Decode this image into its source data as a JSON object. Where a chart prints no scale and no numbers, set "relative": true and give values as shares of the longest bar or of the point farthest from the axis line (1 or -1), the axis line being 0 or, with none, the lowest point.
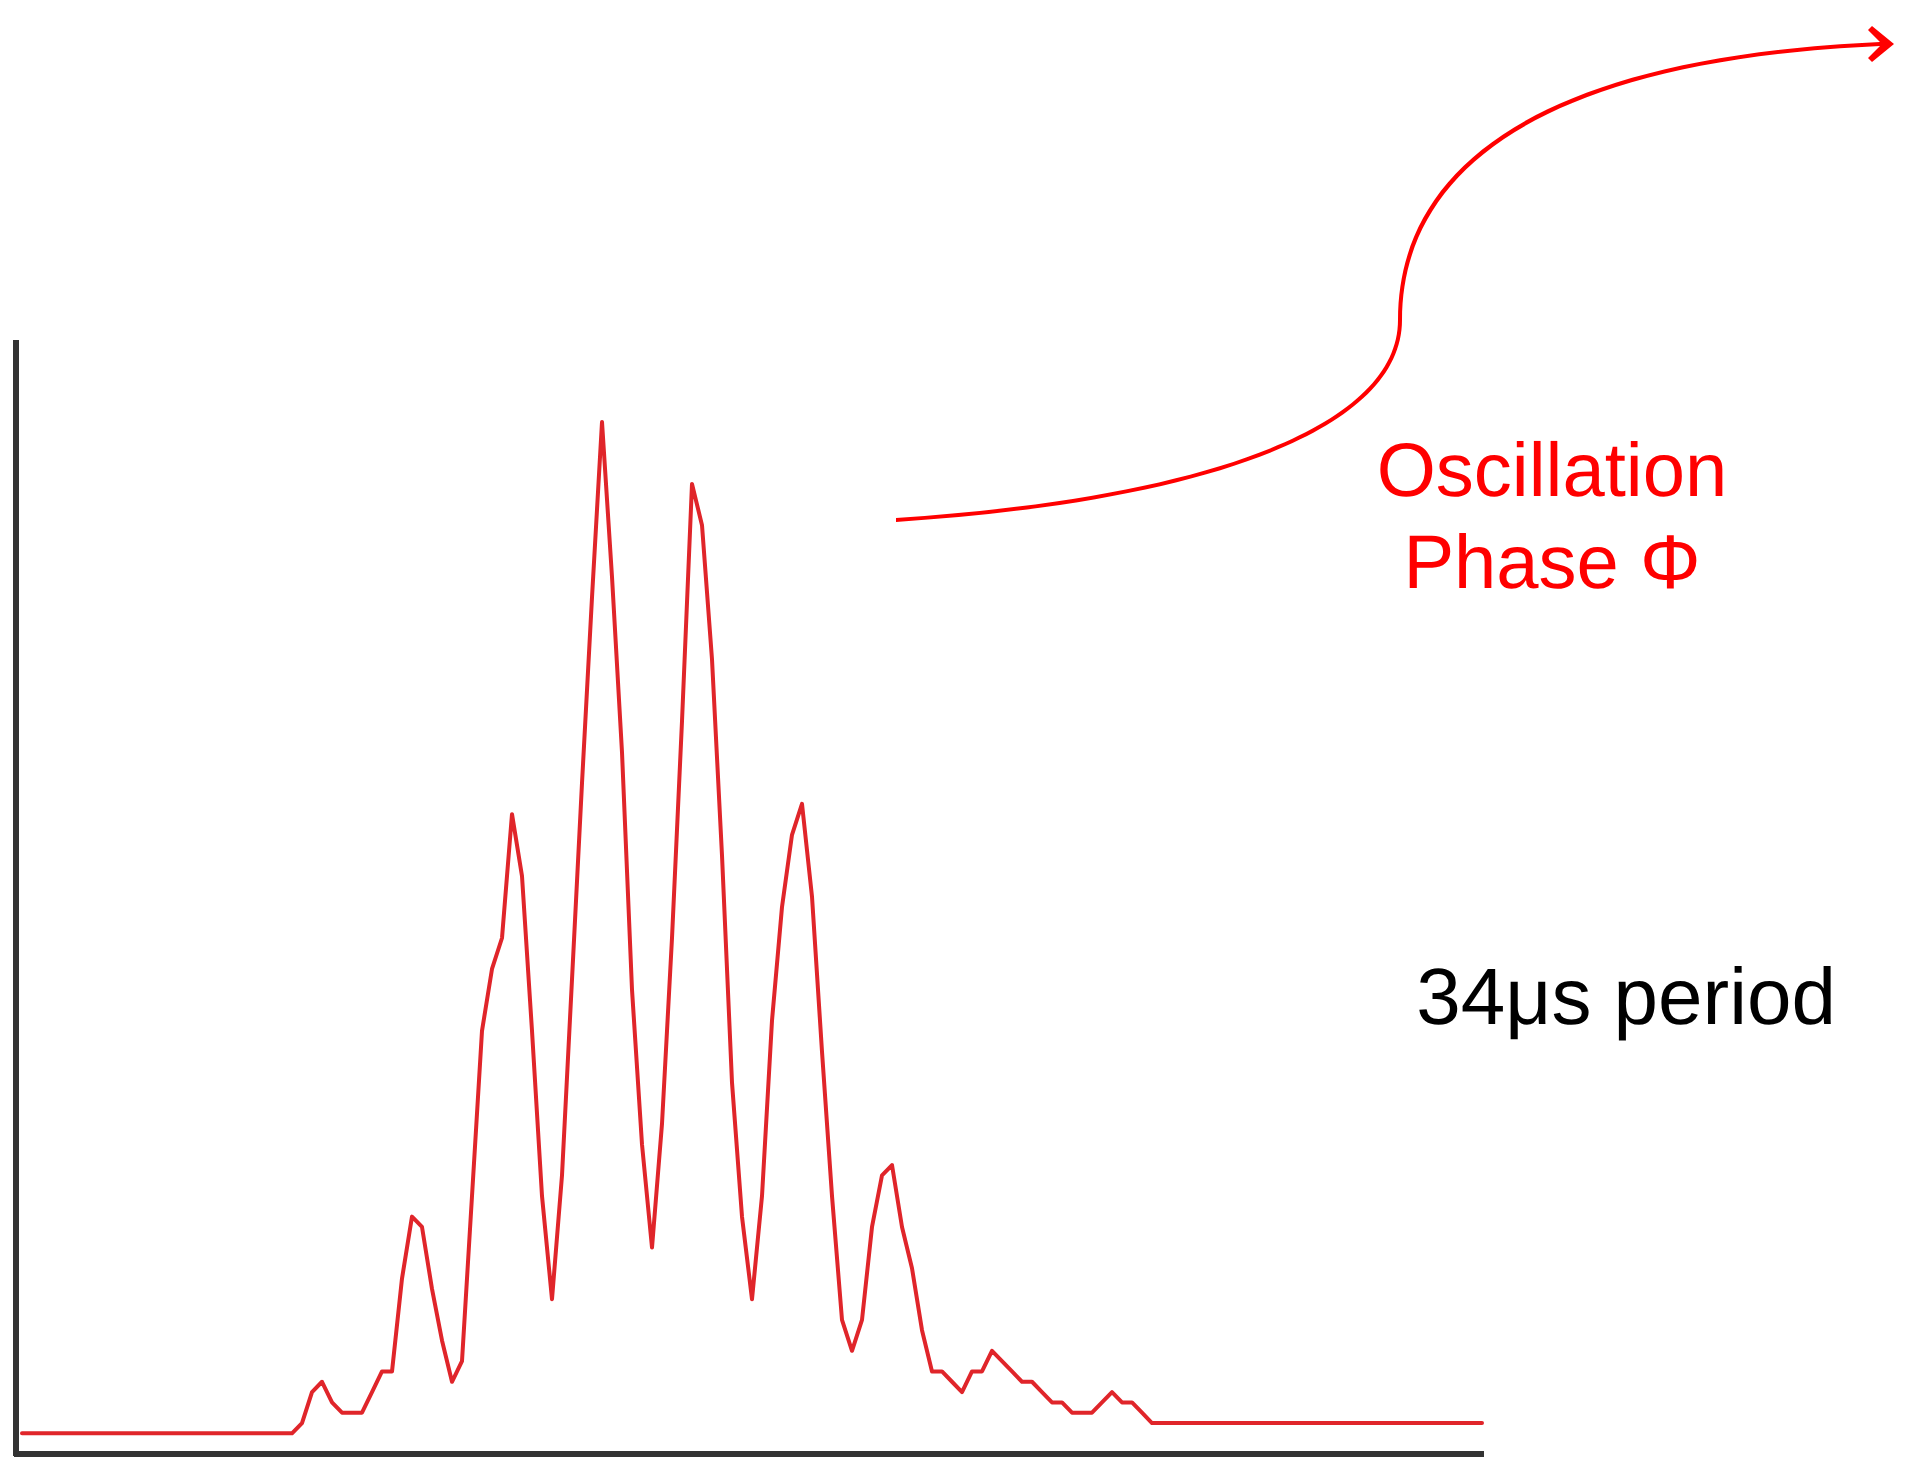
{
  "chart_data": {
    "type": "line",
    "relative": true,
    "categories": [
      null,
      null,
      null,
      null,
      null,
      null,
      null,
      null,
      null,
      null,
      null,
      null,
      null,
      null,
      null,
      null,
      null,
      null,
      null,
      null,
      null,
      null,
      null,
      null,
      null,
      null,
      null,
      null,
      null,
      null,
      null,
      null,
      null,
      null,
      null,
      null,
      null,
      null,
      null,
      null,
      null,
      null,
      null,
      null,
      null,
      null,
      null,
      null,
      null,
      null,
      null,
      null,
      null,
      null,
      null,
      null,
      null,
      null,
      null,
      null,
      null,
      null,
      null,
      null,
      null,
      null,
      null,
      null,
      null,
      null,
      null,
      null,
      null,
      null,
      null,
      null,
      null,
      null,
      null,
      null,
      null,
      null,
      null,
      null,
      null,
      null,
      null,
      null,
      null,
      null,
      null,
      null,
      null,
      null,
      null,
      null,
      null,
      null,
      null,
      null,
      null,
      null,
      null,
      null,
      null,
      null,
      null,
      null,
      null,
      null,
      null,
      null,
      null,
      null,
      null,
      null,
      null,
      null,
      null,
      null,
      null,
      null,
      null,
      null,
      null,
      null,
      null,
      null,
      null,
      null,
      null,
      null,
      null,
      null,
      null,
      null,
      null,
      null,
      null,
      null,
      null,
      null,
      null,
      null,
      null,
      null,
      null
    ],
    "series": [
      {
        "color": "#e0252a",
        "values": [
          0.02,
          0.02,
          0.02,
          0.02,
          0.02,
          0.02,
          0.02,
          0.02,
          0.02,
          0.02,
          0.02,
          0.02,
          0.02,
          0.02,
          0.02,
          0.02,
          0.02,
          0.02,
          0.02,
          0.02,
          0.02,
          0.02,
          0.02,
          0.02,
          0.02,
          0.02,
          0.02,
          0.02,
          0.03,
          0.06,
          0.07,
          0.05,
          0.04,
          0.04,
          0.04,
          0.06,
          0.08,
          0.08,
          0.17,
          0.23,
          0.22,
          0.16,
          0.11,
          0.07,
          0.09,
          0.25,
          0.41,
          0.47,
          0.5,
          0.62,
          0.56,
          0.41,
          0.25,
          0.15,
          0.27,
          0.46,
          0.65,
          0.83,
          1.0,
          0.85,
          0.68,
          0.45,
          0.3,
          0.2,
          0.32,
          0.5,
          0.71,
          0.94,
          0.9,
          0.77,
          0.58,
          0.36,
          0.23,
          0.15,
          0.25,
          0.42,
          0.53,
          0.6,
          0.63,
          0.54,
          0.39,
          0.25,
          0.13,
          0.1,
          0.13,
          0.22,
          0.27,
          0.28,
          0.22,
          0.18,
          0.12,
          0.08,
          0.08,
          0.07,
          0.06,
          0.08,
          0.08,
          0.1,
          0.09,
          0.08,
          0.07,
          0.07,
          0.06,
          0.05,
          0.05,
          0.04,
          0.04,
          0.04,
          0.05,
          0.06,
          0.05,
          0.05,
          0.04,
          0.03,
          0.03,
          0.03,
          0.03,
          0.03,
          0.03,
          0.03,
          0.03,
          0.03,
          0.03,
          0.03,
          0.03,
          0.03,
          0.03,
          0.03,
          0.03,
          0.03,
          0.03,
          0.03,
          0.03,
          0.03,
          0.03,
          0.03,
          0.03,
          0.03,
          0.03,
          0.03,
          0.03,
          0.03,
          0.03,
          0.03,
          0.03,
          0.03,
          0.03
        ]
      }
    ],
    "annotations": [
      "Oscillation\nPhase Φ",
      "34μs period"
    ]
  }
}
